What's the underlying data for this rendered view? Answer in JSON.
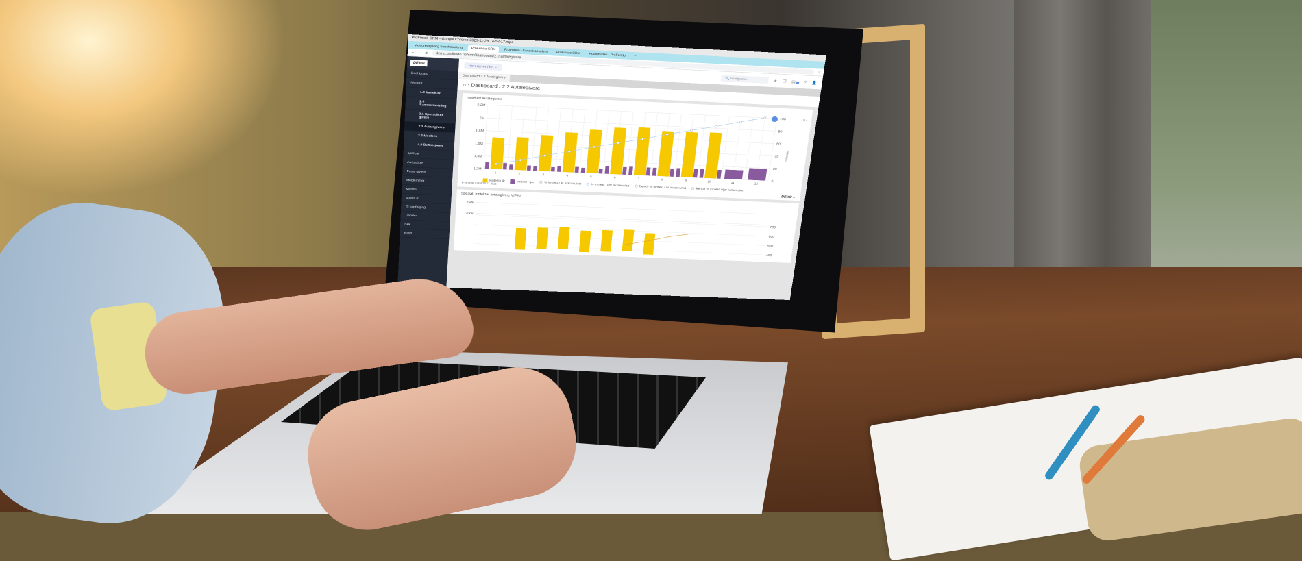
{
  "browser": {
    "window_title": "ProFundo CRM - Google Chrome 2021-11-29 14-52-17.mp4",
    "tabs": [
      "Videoredigering benchmarking",
      "ProFundo CRM",
      "ProFundo - kundekonsulent",
      "ProFundo CRM",
      "Hovedsiden - ProFundo"
    ],
    "url": "demo.profundo.no/crm/dashboard/2.2-avtalegivere",
    "new_tab": "+"
  },
  "sidebar": {
    "logo": "DEMO",
    "items": [
      {
        "label": "Dashboard"
      },
      {
        "label": "Monitor"
      },
      {
        "label": "1.0 Inntekter",
        "sub": true
      },
      {
        "label": "2.0 Sammensetning",
        "sub": true
      },
      {
        "label": "2.1 Sporadiske givere",
        "sub": true
      },
      {
        "label": "2.2 Avtalegivere",
        "sub": true,
        "active": true
      },
      {
        "label": "2.3 Medlem",
        "sub": true
      },
      {
        "label": "4.0 Definisjoner",
        "sub": true
      },
      {
        "label": "apiKust"
      },
      {
        "label": "Autojobber"
      },
      {
        "label": "Faste givere"
      },
      {
        "label": "Medlemmer"
      },
      {
        "label": "Monitor"
      },
      {
        "label": "Status rd"
      },
      {
        "label": "Til oppfølging"
      },
      {
        "label": "Trender"
      },
      {
        "label": "Søk"
      },
      {
        "label": "Navn"
      }
    ]
  },
  "topbar": {
    "filter": "Hovedgiver (30) ⌄",
    "search_placeholder": "Hurtigsøk...",
    "notification_count": "8"
  },
  "page_tab": "Dashboard 2.2 Avtalegivere",
  "breadcrumb": "⌂ › Dashboard › 2.2 Avtalegivere",
  "colors": {
    "this_year": "#f5c800",
    "last_year": "#8a5a9e",
    "line": "#a9cdf0",
    "sidebar": "#232a38"
  },
  "chart_data": [
    {
      "type": "bar",
      "title": "Inntekter avtalegivere",
      "categories": [
        "1",
        "2",
        "3",
        "4",
        "5",
        "6",
        "7",
        "8",
        "9",
        "10",
        "11",
        "12"
      ],
      "yticks": [
        "1,2M",
        "1,4M",
        "1,6M",
        "1,8M",
        "2M",
        "2,2M"
      ],
      "ylim": [
        1200000,
        2200000
      ],
      "y2ticks": [
        "0",
        "20",
        "40",
        "60",
        "80",
        "100"
      ],
      "y2lim": [
        0,
        100
      ],
      "y2label": "% inntekt",
      "series": [
        {
          "name": "Inntekt i år",
          "type": "bar",
          "values": [
            1700000,
            1720000,
            1770000,
            1830000,
            1890000,
            1940000,
            1960000,
            1920000,
            1920000,
            1930000,
            null,
            null
          ]
        },
        {
          "name": "Inntekt i fjor",
          "type": "bar",
          "values": [
            1300000,
            1280000,
            1270000,
            1290000,
            1280000,
            1320000,
            1330000,
            1330000,
            1340000,
            1340000,
            1350000,
            1390000
          ]
        },
        {
          "name": "% inntekt i fjor akkumulert",
          "type": "line",
          "axis": "y2",
          "values": [
            8,
            16,
            25,
            33,
            42,
            50,
            58,
            67,
            75,
            83,
            92,
            100
          ]
        }
      ],
      "legend": [
        "Inntekt i år",
        "Inntekt i fjor",
        "% inntekt i år akkumulert",
        "% inntekt i fjor akkumulert",
        "Bench % inntekt i år akkumulert",
        "Bench % inntekt i fjor akkumulert"
      ],
      "legend_position": "bottom",
      "grid": true,
      "footer": "ProFundo CRM 29.11.2021",
      "brand": "DEMO"
    },
    {
      "type": "bar",
      "title": "Spesial: Inntekter avtalegivere VIPPS",
      "yticks": [
        "200k",
        "250k"
      ],
      "y2ticks": [
        "400",
        "500",
        "600",
        "700"
      ],
      "grid": true
    }
  ]
}
